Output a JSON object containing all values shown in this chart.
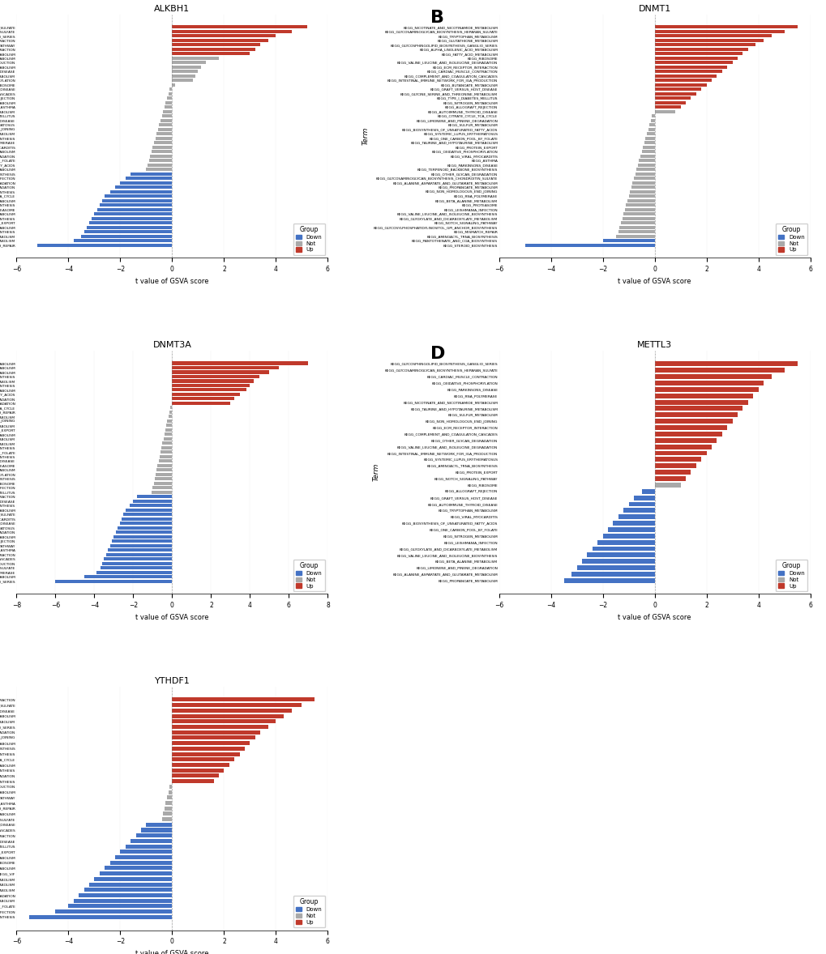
{
  "panels": {
    "A": {
      "title": "ALKBH1",
      "terms_top_to_bottom": [
        "KEGG_GLYCOSAMINOGLYCAN_BIOSYNTHESIS_HEPARAN_SULFATE",
        "KEGG_GLYCOSAMINOGLYCAN_BIOSYNTHESIS_CHONDROITIN_SULFATE",
        "KEGG_GLYCOSPHINGOLIPID_BIOSYNTHESIS_GANGLIO_SERIES",
        "KEGG_CARDIAC_MUSCLE_CONTRACTION",
        "KEGG_NOTCH_SIGNALING_PATHWAY",
        "KEGG_ECM_RECEPTOR_INTERACTION",
        "KEGG_ALPHA_LINOLENIC_ACID_METABOLISM",
        "KEGG_SULFUR_METABOLISM",
        "KEGG_INTESTINAL_IMMUNE_NETWORK_FOR_IGA_PRODUCTION",
        "KEGG_NICOTINATE_AND_NICOTINAMIDE_METABOLISM",
        "KEGG_GRAFT_VERSUS_HOST_DISEASE",
        "KEGG_TAURINE_AND_HYPOTAURINE_METABOLISM",
        "KEGG_OXIDATIVE_PHOSPHORYLATION",
        "KEGG_RIBOSOME",
        "KEGG_AUTOIMMUNE_THYROID_DISEASE",
        "KEGG_COMPLEMENT_AND_COAGULATION_CASCADES",
        "KEGG_ALLOGRAFT_REJECTION",
        "KEGG_GLUTATHIONE_METABOLISM",
        "KEGG_ASTHMA",
        "KEGG_FATTY_ACID_METABOLISM",
        "KEGG_TYPE_I_DIABETES_MELLITUS",
        "KEGG_PARKINSONS_DISEASE",
        "KEGG_SYSTEMIC_LUPUS_ERYTHEMATOSUS",
        "KEGG_NON_HOMOLOGOUS_END_JOINING",
        "KEGG_GLYCINE_SERINE_AND_THREONINE_METABOLISM",
        "KEGG_TERPENOID_BACKBONE_BIOSYNTHESIS",
        "KEGG_RNA_POLYMERASE",
        "KEGG_VIRAL_MYOCARDITIS",
        "KEGG_TRYPTOPHAN_METABOLISM",
        "KEGG_OTHER_GLYCAN_DEGRADATION",
        "KEGG_ONE_CARBON_POOL_BY_FOLATE",
        "KEGG_BIOSYNTHESIS_OF_UNSATURATED_FATTY_ACIDS",
        "KEGG_NITROGEN_METABOLISM",
        "KEGG_AMINOACYL_TRNA_BIOSYNTHESIS",
        "KEGG_LEISHMANIA_INFECTION",
        "KEGG_LIMONENE_AND_PINENE_DEGRADATION",
        "KEGG_VALINE_LEUCINE_AND_ISOLEUCINE_DEGRADATION",
        "KEGG_PANTOTHENATE_AND_COA_BIOSYNTHESIS",
        "KEGG_CITRATE_CYCLE_TCA_CYCLE",
        "KEGG_BUTANOATE_METABOLISM",
        "KEGG_VALINE_LEUCINE_AND_ISOLEUCINE_BIOSYNTHESIS",
        "KEGG_PROTEASOME",
        "KEGG_ALANINE_ASPARTATE_AND_GLUTAMATE_METABOLISM",
        "KEGG_GLYCOSYLPHOSPHATIDYLINOSITOL_GPI_ANCHOR_BIOSYNTHESIS",
        "KEGG_PROTEIN_EXPORT",
        "KEGG_PROPANOATE_METABOLISM",
        "KEGG_STEROID_BIOSYNTHESIS",
        "KEGG_BETA_ALANINE_METABOLISM",
        "KEGG_GLYOXYLATE_AND_DICARBOXYLATE_METABOLISM",
        "KEGG_MISMATCH_REPAIR"
      ],
      "values_top_to_bottom": [
        5.2,
        4.6,
        4.0,
        3.7,
        3.4,
        3.2,
        3.0,
        1.8,
        1.3,
        1.1,
        1.0,
        0.9,
        0.8,
        0.1,
        -0.1,
        -0.15,
        -0.2,
        -0.25,
        -0.3,
        -0.35,
        -0.4,
        -0.45,
        -0.5,
        -0.55,
        -0.6,
        -0.65,
        -0.7,
        -0.75,
        -0.8,
        -0.85,
        -0.9,
        -0.95,
        -1.0,
        -1.6,
        -1.8,
        -2.0,
        -2.2,
        -2.4,
        -2.6,
        -2.7,
        -2.8,
        -2.9,
        -3.0,
        -3.1,
        -3.2,
        -3.3,
        -3.4,
        -3.5,
        -3.8,
        -5.2
      ],
      "colors_top_to_bottom": [
        "red",
        "red",
        "red",
        "red",
        "red",
        "red",
        "red",
        "gray",
        "gray",
        "gray",
        "gray",
        "gray",
        "gray",
        "gray",
        "gray",
        "gray",
        "gray",
        "gray",
        "gray",
        "gray",
        "gray",
        "gray",
        "gray",
        "gray",
        "gray",
        "gray",
        "gray",
        "gray",
        "gray",
        "gray",
        "gray",
        "gray",
        "gray",
        "blue",
        "blue",
        "blue",
        "blue",
        "blue",
        "blue",
        "blue",
        "blue",
        "blue",
        "blue",
        "blue",
        "blue",
        "blue",
        "blue",
        "blue",
        "blue",
        "blue"
      ],
      "xlim": [
        -6,
        6
      ]
    },
    "B": {
      "title": "DNMT1",
      "terms_top_to_bottom": [
        "KEGG_NICOTINATE_AND_NICOTINAMIDE_METABOLISM",
        "KEGG_GLYCOSAMINOGLYCAN_BIOSYNTHESIS_HEPARAN_SULFATE",
        "KEGG_TRYPTOPHAN_METABOLISM",
        "KEGG_GLUTATHIONE_METABOLISM",
        "KEGG_GLYCOSPHINGOLIPID_BIOSYNTHESIS_GANGLIO_SERIES",
        "KEGG_ALPHA_LINOLENIC_ACID_METABOLISM",
        "KEGG_FATTY_ACID_METABOLISM",
        "KEGG_RIBOSOME",
        "KEGG_VALINE_LEUCINE_AND_ISOLEUCINE_DEGRADATION",
        "KEGG_ECM_RECEPTOR_INTERACTION",
        "KEGG_CARDIAC_MUSCLE_CONTRACTION",
        "KEGG_COMPLEMENT_AND_COAGULATION_CASCADES",
        "KEGG_INTESTINAL_IMMUNE_NETWORK_FOR_IGA_PRODUCTION",
        "KEGG_BUTANOATE_METABOLISM",
        "KEGG_GRAFT_VERSUS_HOST_DISEASE",
        "KEGG_GLYCINE_SERINE_AND_THREONINE_METABOLISM",
        "KEGG_TYPE_I_DIABETES_MELLITUS",
        "KEGG_NITROGEN_METABOLISM",
        "KEGG_ALLOGRAFT_REJECTION",
        "KEGG_AUTOIMMUNE_THYROID_DISEASE",
        "KEGG_CITRATE_CYCLE_TCA_CYCLE",
        "KEGG_LIMONENE_AND_PINENE_DEGRADATION",
        "KEGG_SULFUR_METABOLISM",
        "KEGG_BIOSYNTHESIS_OF_UNSATURATED_FATTY_ACIDS",
        "KEGG_SYSTEMIC_LUPUS_ERYTHEMATOSUS",
        "KEGG_ONE_CARBON_POOL_BY_FOLATE",
        "KEGG_TAURINE_AND_HYPOTAURINE_METABOLISM",
        "KEGG_PROTEIN_EXPORT",
        "KEGG_OXIDATIVE_PHOSPHORYLATION",
        "KEGG_VIRAL_MYOCARDITIS",
        "KEGG_ASTHMA",
        "KEGG_PARKINSONS_DISEASE",
        "KEGG_TERPENOID_BACKBONE_BIOSYNTHESIS",
        "KEGG_OTHER_GLYCAN_DEGRADATION",
        "KEGG_GLYCOSAMINOGLYCAN_BIOSYNTHESIS_CHONDROITIN_SULFATE",
        "KEGG_ALANINE_ASPARTATE_AND_GLUTAMATE_METABOLISM",
        "KEGG_PROPANOATE_METABOLISM",
        "KEGG_NON_HOMOLOGOUS_END_JOINING",
        "KEGG_RNA_POLYMERASE",
        "KEGG_BETA_ALANINE_METABOLISM",
        "KEGG_PROTEASOME",
        "KEGG_LEISHMANIA_INFECTION",
        "KEGG_VALINE_LEUCINE_AND_ISOLEUCINE_BIOSYNTHESIS",
        "KEGG_GLYOXYLATE_AND_DICARBOXYLATE_METABOLISM",
        "KEGG_NOTCH_SIGNALING_PATHWAY",
        "KEGG_GLYCOSYLPHOSPHATIDYLINOSITOL_GPI_ANCHOR_BIOSYNTHESIS",
        "KEGG_MISMATCH_REPAIR",
        "KEGG_AMINOACYL_TRNA_BIOSYNTHESIS",
        "KEGG_PANTOTHENATE_AND_COA_BIOSYNTHESIS",
        "KEGG_STEROID_BIOSYNTHESIS"
      ],
      "values_top_to_bottom": [
        5.5,
        5.0,
        4.5,
        4.2,
        3.9,
        3.6,
        3.4,
        3.2,
        3.0,
        2.8,
        2.6,
        2.4,
        2.2,
        2.0,
        1.8,
        1.6,
        1.4,
        1.2,
        1.0,
        0.8,
        -0.1,
        -0.15,
        -0.2,
        -0.25,
        -0.3,
        -0.35,
        -0.4,
        -0.45,
        -0.5,
        -0.55,
        -0.6,
        -0.65,
        -0.7,
        -0.75,
        -0.8,
        -0.85,
        -0.9,
        -0.95,
        -1.0,
        -1.05,
        -1.1,
        -1.15,
        -1.2,
        -1.25,
        -1.3,
        -1.35,
        -1.4,
        -1.5,
        -2.0,
        -5.0
      ],
      "colors_top_to_bottom": [
        "red",
        "red",
        "red",
        "red",
        "red",
        "red",
        "red",
        "red",
        "red",
        "red",
        "red",
        "red",
        "red",
        "red",
        "red",
        "red",
        "red",
        "red",
        "red",
        "gray",
        "gray",
        "gray",
        "gray",
        "gray",
        "gray",
        "gray",
        "gray",
        "gray",
        "gray",
        "gray",
        "gray",
        "gray",
        "gray",
        "gray",
        "gray",
        "gray",
        "gray",
        "gray",
        "gray",
        "gray",
        "gray",
        "gray",
        "gray",
        "gray",
        "gray",
        "gray",
        "gray",
        "gray",
        "blue",
        "blue"
      ],
      "xlim": [
        -6,
        6
      ]
    },
    "C": {
      "title": "DNMT3A",
      "terms_top_to_bottom": [
        "KEGG_ALANINE_ASPARTATE_AND_GLUTAMATE_METABOLISM",
        "KEGG_NITROGEN_METABOLISM",
        "KEGG_PROPANOATE_METABOLISM",
        "KEGG_TERPENOID_BACKBONE_BIOSYNTHESIS",
        "KEGG_GLYOXYLATE_AND_DICARBOXYLATE_METABOLISM",
        "KEGG_STEROID_BIOSYNTHESIS",
        "KEGG_BUTANOATE_METABOLISM",
        "KEGG_BIOSYNTHESIS_OF_UNSATURATED_FATTY_ACIDS",
        "KEGG_VALINE_LEUCINE_AND_ISOLEUCINE_DEGRADATION",
        "KEGG_LIMONENE_AND_PINENE_DEGRADATION",
        "KEGG_CITRATE_CYCLE_TCA_CYCLE",
        "KEGG_MISMATCH_REPAIR",
        "KEGG_BETA_ALANINE_METABOLISM",
        "KEGG_NON_HOMOLOGOUS_END_JOINING",
        "KEGG_TAURINE_AND_HYPOTAURINE_METABOLISM",
        "KEGG_PROTEIN_EXPORT",
        "KEGG_SULFUR_METABOLISM",
        "KEGG_FATTY_ACID_METABOLISM",
        "KEGG_GLYCINE_SERINE_AND_THREONINE_METABOLISM",
        "KEGG_VALINE_LEUCINE_AND_ISOLEUCINE_BIOSYNTHESIS",
        "KEGG_ONE_CARBON_POOL_BY_FOLATE",
        "KEGG_GLYCOSYLPHOSPHATIDYLINOSITOL_GPI_ANCHOR_BIOSYNTHESIS",
        "KEGG_PARKINSONS_DISEASE",
        "KEGG_PROTEASOME",
        "KEGG_TRYPTOPHAN_METABOLISM",
        "KEGG_OXIDATIVE_PHOSPHORYLATION",
        "KEGG_AMINOACYL_TRNA_BIOSYNTHESIS",
        "KEGG_RIBOSOME",
        "KEGG_LEISHMANIA_INFECTION",
        "KEGG_TYPE_I_DIABETES_MELLITUS",
        "KEGG_CARDIAC_MUSCLE_CONTRACTION",
        "KEGG_GRAFT_VERSUS_HOST_DISEASE",
        "KEGG_PANTOTHENATE_AND_COA_BIOSYNTHESIS",
        "KEGG_GLUTATHIONE_METABOLISM",
        "KEGG_GLYCOSAMINOGLYCAN_BIOSYNTHESIS_HEPARAN_SULFATE",
        "KEGG_VIRAL_MYOCARDITIS",
        "KEGG_AUTOIMMUNE_THYROID_DISEASE",
        "KEGG_SYSTEMIC_LUPUS_ERYTHEMATOSUS",
        "KEGG_OTHER_GLYCAN_DEGRADATION",
        "KEGG_ALPHA_LINOLENIC_ACID_METABOLISM",
        "KEGG_ALLOGRAFT_REJECTION",
        "KEGG_NOTCH_SIGNALING_PATHWAY",
        "KEGG_ASTHMA",
        "KEGG_ECM_RECEPTOR_INTERACTION",
        "KEGG_COMPLEMENT_AND_COAGULATION_CASCADES",
        "KEGG_INTESTINAL_IMMUNE_NETWORK_FOR_IGA_PRODUCTION",
        "KEGG_GLYCOSAMINOGLYCAN_BIOSYNTHESIS_CHONDROITIN_SULFATE",
        "KEGG_RNA_POLYMERASE",
        "KEGG_NICOTINATE_AND_NICOTINAMIDE_METABOLISM",
        "KEGG_GLYCOSPHINGOLIPID_BIOSYNTHESIS_GANGLIO_SERIES"
      ],
      "values_top_to_bottom": [
        7.0,
        5.5,
        5.0,
        4.5,
        4.2,
        4.0,
        3.8,
        3.5,
        3.2,
        3.0,
        -0.1,
        -0.15,
        -0.2,
        -0.25,
        -0.3,
        -0.35,
        -0.4,
        -0.45,
        -0.5,
        -0.55,
        -0.6,
        -0.65,
        -0.7,
        -0.75,
        -0.8,
        -0.85,
        -0.9,
        -0.95,
        -1.0,
        -1.05,
        -1.8,
        -2.0,
        -2.2,
        -2.4,
        -2.5,
        -2.6,
        -2.7,
        -2.8,
        -2.9,
        -3.0,
        -3.1,
        -3.2,
        -3.3,
        -3.4,
        -3.5,
        -3.6,
        -3.7,
        -3.9,
        -4.5,
        -6.0
      ],
      "colors_top_to_bottom": [
        "red",
        "red",
        "red",
        "red",
        "red",
        "red",
        "red",
        "red",
        "red",
        "red",
        "gray",
        "gray",
        "gray",
        "gray",
        "gray",
        "gray",
        "gray",
        "gray",
        "gray",
        "gray",
        "gray",
        "gray",
        "gray",
        "gray",
        "gray",
        "gray",
        "gray",
        "gray",
        "gray",
        "gray",
        "blue",
        "blue",
        "blue",
        "blue",
        "blue",
        "blue",
        "blue",
        "blue",
        "blue",
        "blue",
        "blue",
        "blue",
        "blue",
        "blue",
        "blue",
        "blue",
        "blue",
        "blue",
        "blue",
        "blue"
      ],
      "xlim": [
        -8,
        8
      ]
    },
    "D": {
      "title": "METTL3",
      "terms_top_to_bottom": [
        "KEGG_GLYCOSPHINGOLIPID_BIOSYNTHESIS_GANGLIO_SERIES",
        "KEGG_GLYCOSAMINOGLYCAN_BIOSYNTHESIS_HEPARAN_SULFATE",
        "KEGG_CARDIAC_MUSCLE_CONTRACTION",
        "KEGG_OXIDATIVE_PHOSPHORYLATION",
        "KEGG_PARKINSONS_DISEASE",
        "KEGG_RNA_POLYMERASE",
        "KEGG_NICOTINATE_AND_NICOTINAMIDE_METABOLISM",
        "KEGG_TAURINE_AND_HYPOTAURINE_METABOLISM",
        "KEGG_SULFUR_METABOLISM",
        "KEGG_NON_HOMOLOGOUS_END_JOINING",
        "KEGG_ECM_RECEPTOR_INTERACTION",
        "KEGG_COMPLEMENT_AND_COAGULATION_CASCADES",
        "KEGG_OTHER_GLYCAN_DEGRADATION",
        "KEGG_VALINE_LEUCINE_AND_ISOLEUCINE_DEGRADATION",
        "KEGG_INTESTINAL_IMMUNE_NETWORK_FOR_IGA_PRODUCTION",
        "KEGG_SYSTEMIC_LUPUS_ERYTHEMATOSUS",
        "KEGG_AMINOACYL_TRNA_BIOSYNTHESIS",
        "KEGG_PROTEIN_EXPORT",
        "KEGG_NOTCH_SIGNALING_PATHWAY",
        "KEGG_RIBOSOME",
        "KEGG_ALLOGRAFT_REJECTION",
        "KEGG_GRAFT_VERSUS_HOST_DISEASE",
        "KEGG_AUTOIMMUNE_THYROID_DISEASE",
        "KEGG_TRYPTOPHAN_METABOLISM",
        "KEGG_VIRAL_MYOCARDITIS",
        "KEGG_BIOSYNTHESIS_OF_UNSATURATED_FATTY_ACIDS",
        "KEGG_ONE_CARBON_POOL_BY_FOLATE",
        "KEGG_NITROGEN_METABOLISM",
        "KEGG_LEISHMANIA_INFECTION",
        "KEGG_GLYOXYLATE_AND_DICARBOXYLATE_METABOLISM",
        "KEGG_VALINE_LEUCINE_AND_ISOLEUCINE_BIOSYNTHESIS",
        "KEGG_BETA_ALANINE_METABOLISM",
        "KEGG_LIMONENE_AND_PINENE_DEGRADATION",
        "KEGG_ALANINE_ASPARTATE_AND_GLUTAMATE_METABOLISM",
        "KEGG_PROPANOATE_METABOLISM"
      ],
      "values_top_to_bottom": [
        5.5,
        5.0,
        4.5,
        4.2,
        4.0,
        3.8,
        3.6,
        3.4,
        3.2,
        3.0,
        2.8,
        2.6,
        2.4,
        2.2,
        2.0,
        1.8,
        1.6,
        1.4,
        1.2,
        1.0,
        -0.5,
        -0.8,
        -1.0,
        -1.2,
        -1.4,
        -1.6,
        -1.8,
        -2.0,
        -2.2,
        -2.4,
        -2.6,
        -2.8,
        -3.0,
        -3.2,
        -3.5
      ],
      "colors_top_to_bottom": [
        "red",
        "red",
        "red",
        "red",
        "red",
        "red",
        "red",
        "red",
        "red",
        "red",
        "red",
        "red",
        "red",
        "red",
        "red",
        "red",
        "red",
        "red",
        "red",
        "gray",
        "blue",
        "blue",
        "blue",
        "blue",
        "blue",
        "blue",
        "blue",
        "blue",
        "blue",
        "blue",
        "blue",
        "blue",
        "blue",
        "blue",
        "blue"
      ],
      "xlim": [
        -6,
        6
      ]
    },
    "E": {
      "title": "YTHDF1",
      "terms_top_to_bottom": [
        "KEGG_CARDIAC_MUSCLE_CONTRACTION",
        "KEGG_GLYCOSAMINOGLYCAN_BIOSYNTHESIS_HEPARAN_SULFATE",
        "KEGG_PARKINSONS_DISEASE",
        "KEGG_NICOTINATE_AND_NICOTINAMIDE_METABOLISM",
        "KEGG_TAURINE_AND_HYPOTAURINE_METABOLISM",
        "KEGG_GLYCOSPHINGOLIPID_BIOSYNTHESIS_GANGLIO_SERIES",
        "KEGG_OTHER_GLYCAN_DEGRADATION",
        "KEGG_NON_HOMOLOGOUS_END_JOINING",
        "KEGG_GLUTATHIONE_METABOLISM",
        "KEGG_AMINOACYL_TRNA_BIOSYNTHESIS",
        "KEGG_TERPENOID_BACKBONE_BIOSYNTHESIS",
        "KEGG_CITRATE_CYCLE_TCA_CYCLE",
        "KEGG_BUTANOATE_METABOLISM",
        "KEGG_GLYCOSYLPHOSPHATIDYLINOSITOL_GPI_ANCHOR_BIOSYNTHESIS",
        "KEGG_VALINE_LEUCINE_AND_ISOLEUCINE_DEGRADATION",
        "KEGG_VALINE_LEUCINE_AND_ISOLEUCINE_BIOSYNTHESIS",
        "KEGG_INTESTINAL_IMMUNE_NETWORK_FOR_IGA_PRODUCTION",
        "KEGG_ALPHA_LINOLENIC_ACID_METABOLISM",
        "KEGG_NOTCH_SIGNALING_PATHWAY",
        "KEGG_ASTHMA",
        "KEGG_MISMATCH_REPAIR",
        "KEGG_SULFUR_METABOLISM",
        "KEGG_GLYCOSAMINOGLYCAN_BIOSYNTHESIS_CHONDROITIN_SULFATE",
        "KEGG_AUTOIMMUNE_THYROID_DISEASE",
        "KEGG_COMPLEMENT_AND_COAGULATION_CASCADES",
        "KEGG_ECM_RECEPTOR_INTERACTION",
        "KEGG_GRAFT_VERSUS_HOST_DISEASE",
        "KEGG_TYPE_I_DIABETES_MELLITUS",
        "KEGG_PROTEIN_EXPORT",
        "KEGG_ALANINE_ASPARTATE_AND_GLUTAMATE_METABOLISM",
        "KEGG_RIBOSOME",
        "KEGG_PROPANOATE_METABOLISM",
        "KEGG_VIF",
        "KEGG_GLYCINE_SERINE_AND_THREONINE_METABOLISM",
        "KEGG_BETA_ALANINE_METABOLISM",
        "KEGG_GLYOXYLATE_AND_DICARBOXYLATE_METABOLISM",
        "KEGG_LIMONENE_AND_PINENE_DEGRADATION",
        "KEGG_FATTY_ACID_METABOLISM",
        "KEGG_ONE_CARBON_POOL_BY_FOLATE",
        "KEGG_LEISHMANIA_INFECTION",
        "KEGG_STEROID_BIOSYNTHESIS"
      ],
      "values_top_to_bottom": [
        5.5,
        5.0,
        4.6,
        4.3,
        4.0,
        3.7,
        3.4,
        3.2,
        3.0,
        2.8,
        2.6,
        2.4,
        2.2,
        2.0,
        1.8,
        1.6,
        -0.1,
        -0.15,
        -0.2,
        -0.25,
        -0.3,
        -0.35,
        -0.4,
        -1.0,
        -1.2,
        -1.4,
        -1.6,
        -1.8,
        -2.0,
        -2.2,
        -2.4,
        -2.6,
        -2.8,
        -3.0,
        -3.2,
        -3.4,
        -3.6,
        -3.8,
        -4.0,
        -4.5,
        -5.5
      ],
      "colors_top_to_bottom": [
        "red",
        "red",
        "red",
        "red",
        "red",
        "red",
        "red",
        "red",
        "red",
        "red",
        "red",
        "red",
        "red",
        "red",
        "red",
        "red",
        "gray",
        "gray",
        "gray",
        "gray",
        "gray",
        "gray",
        "gray",
        "blue",
        "blue",
        "blue",
        "blue",
        "blue",
        "blue",
        "blue",
        "blue",
        "blue",
        "blue",
        "blue",
        "blue",
        "blue",
        "blue",
        "blue",
        "blue",
        "blue",
        "blue"
      ],
      "xlim": [
        -6,
        6
      ]
    }
  },
  "color_map": {
    "Down": "#4472C4",
    "Not": "#A9A9A9",
    "Up": "#C0392B"
  },
  "xlabel": "t value of GSVA score",
  "ylabel": "Term",
  "legend_title": "Group",
  "legend_labels": [
    "Down",
    "Not",
    "Up"
  ]
}
